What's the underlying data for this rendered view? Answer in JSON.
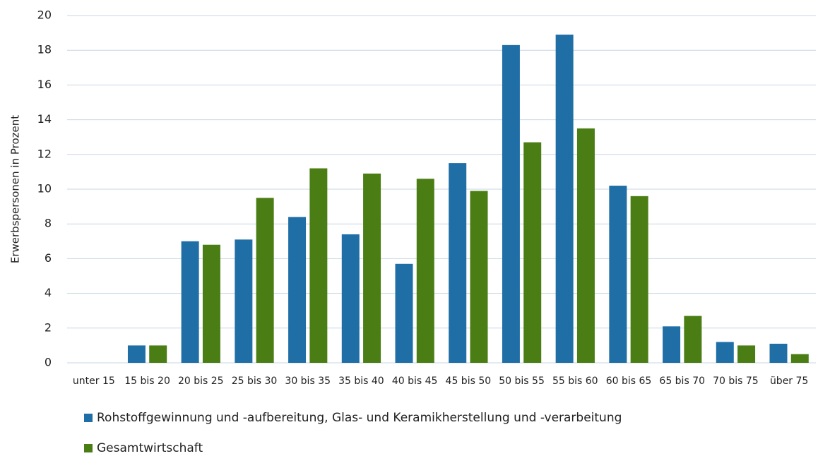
{
  "chart_data": {
    "type": "bar",
    "y_label": "Erwerbspersonen in Prozent",
    "categories": [
      "unter 15",
      "15 bis 20",
      "20 bis 25",
      "25 bis 30",
      "30 bis 35",
      "35 bis 40",
      "40 bis 45",
      "45 bis 50",
      "50 bis 55",
      "55 bis 60",
      "60 bis 65",
      "65 bis 70",
      "70 bis 75",
      "über 75"
    ],
    "series": [
      {
        "name": "Rohstoffgewinnung und -aufbereitung, Glas- und Keramikherstellung und -verarbeitung",
        "color": "#1f6ea6",
        "values": [
          0,
          1.0,
          7.0,
          7.1,
          8.4,
          7.4,
          5.7,
          11.5,
          18.3,
          18.9,
          10.2,
          2.1,
          1.2,
          1.1
        ]
      },
      {
        "name": "Gesamtwirtschaft",
        "color": "#4a7e14",
        "values": [
          0,
          1.0,
          6.8,
          9.5,
          11.2,
          10.9,
          10.6,
          9.9,
          12.7,
          13.5,
          9.6,
          2.7,
          1.0,
          0.5
        ]
      }
    ],
    "ylim": [
      0,
      20
    ],
    "yticks": [
      0,
      2,
      4,
      6,
      8,
      10,
      12,
      14,
      16,
      18,
      20
    ],
    "grid": true
  }
}
